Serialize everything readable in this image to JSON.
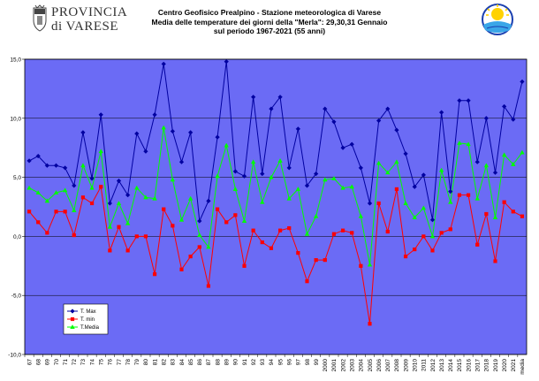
{
  "header": {
    "logo_line1": "PROVINCIA",
    "logo_line2": "di VARESE",
    "title_lines": [
      "Centro Geofisico Prealpino - Stazione meteorologica di Varese",
      "Media delle temperature dei giorni della \"Merla\": 29,30,31 Gennaio",
      "sul periodo 1967-2021 (55 anni)"
    ]
  },
  "colors": {
    "plot_bg": "#6b6bf5",
    "tmax": "#0000a0",
    "tmin": "#ff0000",
    "tmedia": "#00ff00",
    "grid": "#000000"
  },
  "chart_data": {
    "type": "line",
    "title": "",
    "xlabel": "",
    "ylabel": "",
    "ylim": [
      -10,
      15
    ],
    "yticks": [
      "15,0",
      "10,0",
      "5,0",
      "0,0",
      "-5,0",
      "-10,0"
    ],
    "ytick_values": [
      15,
      10,
      5,
      0,
      -5,
      -10
    ],
    "grid": true,
    "legend_position": "bottom-left",
    "categories": [
      "67",
      "68",
      "69",
      "70",
      "71",
      "72",
      "73",
      "74",
      "75",
      "76",
      "77",
      "78",
      "79",
      "80",
      "81",
      "82",
      "83",
      "84",
      "85",
      "86",
      "87",
      "88",
      "89",
      "90",
      "91",
      "92",
      "93",
      "94",
      "95",
      "96",
      "97",
      "98",
      "99",
      "2000",
      "2001",
      "2002",
      "2003",
      "2004",
      "2005",
      "2006",
      "2007",
      "2008",
      "2009",
      "2010",
      "2011",
      "2012",
      "2013",
      "2014",
      "2015",
      "2016",
      "2017",
      "2018",
      "2019",
      "2020",
      "2021",
      "media"
    ],
    "series": [
      {
        "name": "T. Max",
        "color": "#0000a0",
        "marker": "diamond",
        "values": [
          6.4,
          6.8,
          6.0,
          6.0,
          5.8,
          4.3,
          8.8,
          4.9,
          10.3,
          2.8,
          4.7,
          3.5,
          8.7,
          7.2,
          10.3,
          14.6,
          8.9,
          6.3,
          8.8,
          1.3,
          3.0,
          8.4,
          14.8,
          5.5,
          5.1,
          11.8,
          5.3,
          10.8,
          11.8,
          5.8,
          9.1,
          4.3,
          5.3,
          10.8,
          9.7,
          7.5,
          7.8,
          5.8,
          2.8,
          9.8,
          10.8,
          9.0,
          7.0,
          4.2,
          5.2,
          1.4,
          10.5,
          3.8,
          11.5,
          11.5,
          6.3,
          10.0,
          5.4,
          11.0,
          9.9,
          13.1
        ]
      },
      {
        "name": "T. min",
        "color": "#ff0000",
        "marker": "square",
        "values": [
          2.1,
          1.2,
          0.3,
          2.1,
          2.1,
          0.1,
          3.3,
          2.8,
          4.2,
          -1.2,
          0.8,
          -1.2,
          0.0,
          0.0,
          -3.2,
          2.3,
          0.9,
          -2.8,
          -1.7,
          -0.9,
          -4.2,
          2.3,
          1.2,
          1.8,
          -2.5,
          0.5,
          -0.5,
          -1.0,
          0.5,
          0.7,
          -1.4,
          -3.8,
          -2.0,
          -2.0,
          0.2,
          0.5,
          0.3,
          -2.5,
          -7.4,
          2.8,
          0.4,
          4.0,
          -1.7,
          -1.1,
          0.0,
          -1.2,
          0.3,
          0.6,
          3.5,
          3.5,
          -0.7,
          1.9,
          -2.1,
          2.9,
          2.1,
          1.7
        ]
      },
      {
        "name": "T.Media",
        "color": "#00ff00",
        "marker": "triangle",
        "values": [
          4.1,
          3.7,
          3.0,
          3.7,
          3.9,
          2.2,
          6.0,
          4.1,
          7.2,
          0.8,
          2.8,
          1.1,
          4.1,
          3.3,
          3.2,
          9.2,
          4.8,
          1.4,
          3.2,
          0.1,
          -0.9,
          5.1,
          7.7,
          4.0,
          1.3,
          6.3,
          2.9,
          5.0,
          6.4,
          3.2,
          4.0,
          0.2,
          1.7,
          4.8,
          4.9,
          4.1,
          4.2,
          1.7,
          -2.4,
          6.2,
          5.4,
          6.3,
          2.8,
          1.6,
          2.4,
          0.0,
          5.6,
          2.9,
          7.9,
          7.8,
          3.2,
          6.0,
          1.6,
          6.9,
          6.1,
          7.1
        ]
      }
    ]
  }
}
